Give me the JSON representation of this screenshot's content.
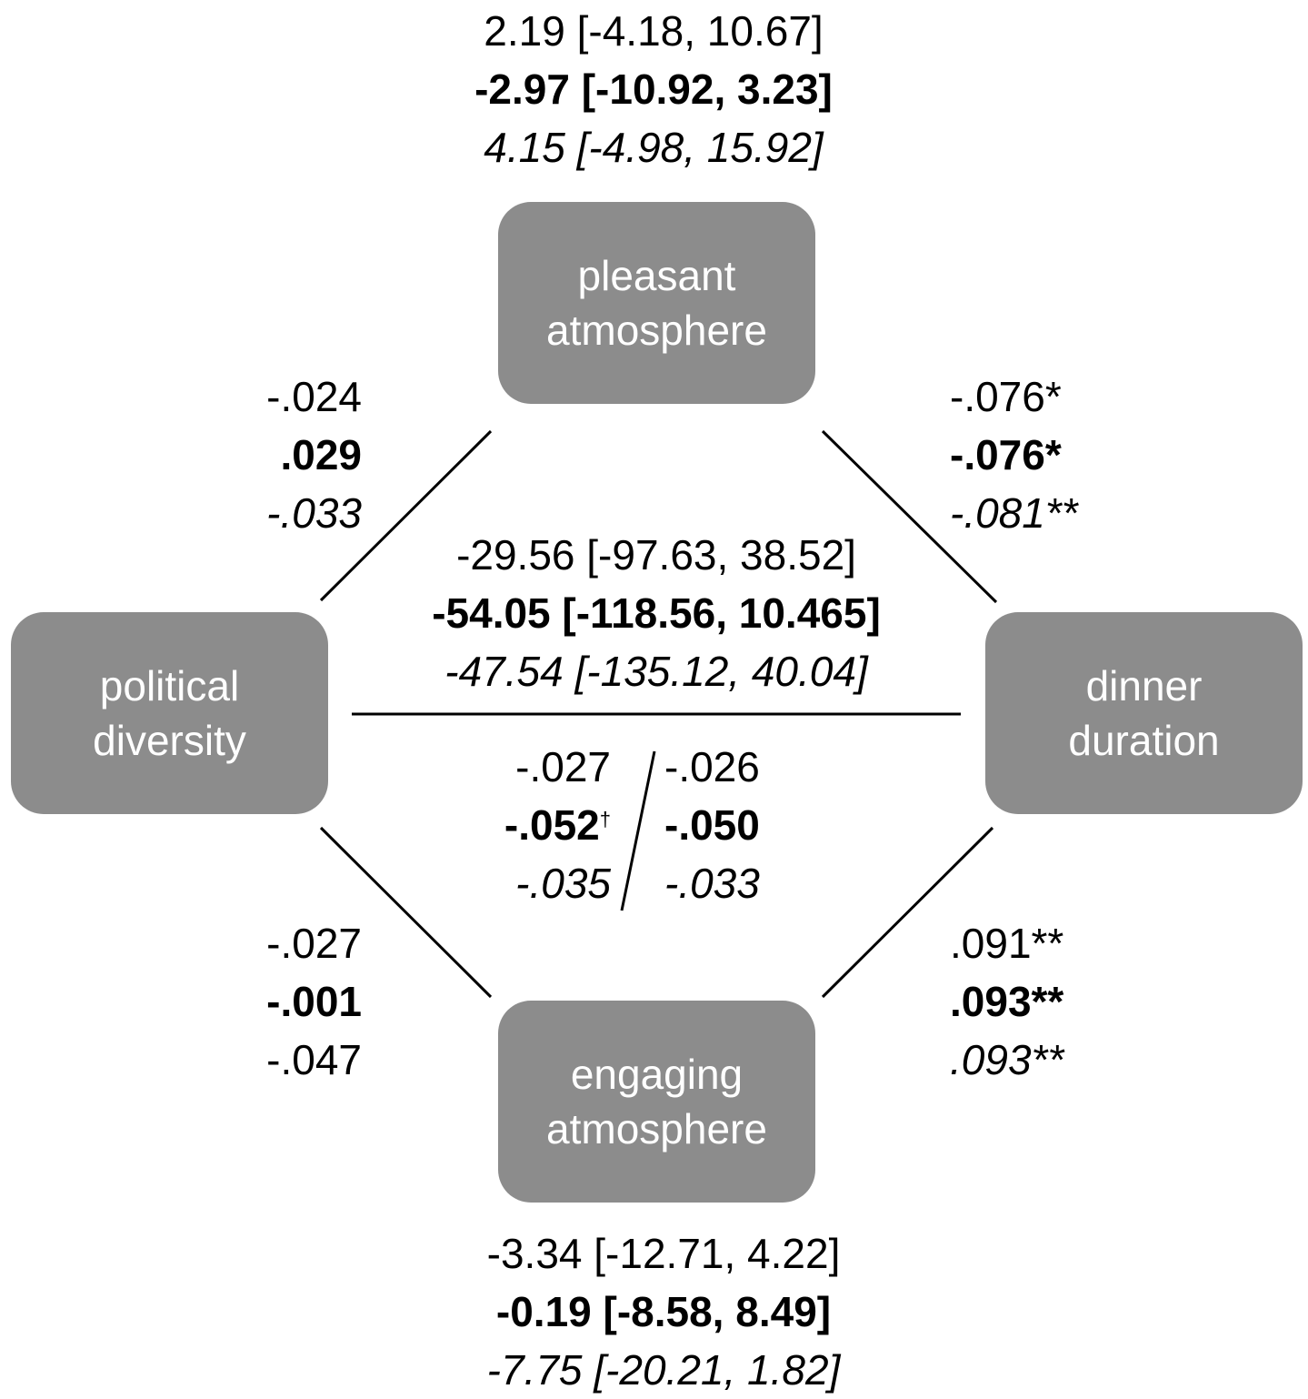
{
  "nodes": {
    "pleasant": [
      "pleasant",
      "atmosphere"
    ],
    "political": [
      "political",
      "diversity"
    ],
    "dinner": [
      "dinner",
      "duration"
    ],
    "engaging": [
      "engaging",
      "atmosphere"
    ]
  },
  "top_ci": {
    "line1": "2.19 [-4.18, 10.67]",
    "line2": "-2.97 [-10.92, 3.23]",
    "line3": "4.15 [-4.98, 15.92]"
  },
  "center_ci": {
    "line1": "-29.56 [-97.63, 38.52]",
    "line2": "-54.05 [-118.56, 10.465]",
    "line3": "-47.54 [-135.12, 40.04]"
  },
  "bottom_ci": {
    "line1": "-3.34 [-12.71, 4.22]",
    "line2": "-0.19 [-8.58, 8.49]",
    "line3": "-7.75 [-20.21, 1.82]"
  },
  "political_to_pleasant": {
    "line1": "-.024",
    "line2": ".029",
    "line3": "-.033"
  },
  "pleasant_to_dinner": {
    "line1": "-.076*",
    "line2": "-.076*",
    "line3": "-.081**"
  },
  "political_to_engaging": {
    "line1": "-.027",
    "line2": "-.001",
    "line3": "-.047"
  },
  "engaging_to_dinner": {
    "line1": ".091**",
    "line2": ".093**",
    "line3": ".093**"
  },
  "indirect_left": {
    "line1": "-.027",
    "line2": "-.052",
    "line2_mark": "†",
    "line3": "-.035"
  },
  "indirect_right": {
    "line1": "-.026",
    "line2": "-.050",
    "line3": "-.033"
  },
  "colors": {
    "node_fill": "#8c8c8c",
    "node_text": "#ffffff",
    "line": "#000000"
  }
}
